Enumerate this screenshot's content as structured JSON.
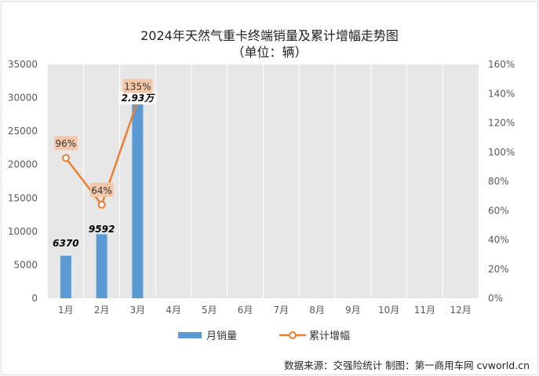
{
  "title_line1": "2024年天然气重卡终端销量及累计增幅走势图",
  "title_line2": "（单位：辆）",
  "footer": "数据来源：交强险统计  制图：第一商用车网 cvworld.cn",
  "colors": {
    "bar": "#5b9bd5",
    "line": "#ed7d31",
    "plot_bg": "#e7e7e7",
    "grid": "#ffffff",
    "label_bg": "#f4c7a8"
  },
  "chart_data": {
    "type": "bar",
    "categories": [
      "1月",
      "2月",
      "3月",
      "4月",
      "5月",
      "6月",
      "7月",
      "8月",
      "9月",
      "10月",
      "11月",
      "12月"
    ],
    "series": [
      {
        "name": "月销量",
        "type": "bar",
        "axis": "left",
        "values": [
          6370,
          9592,
          29300,
          null,
          null,
          null,
          null,
          null,
          null,
          null,
          null,
          null
        ],
        "labels": [
          "6370",
          "9592",
          "2.93万"
        ]
      },
      {
        "name": "累计增幅",
        "type": "line",
        "axis": "right",
        "values": [
          96,
          64,
          135,
          null,
          null,
          null,
          null,
          null,
          null,
          null,
          null,
          null
        ],
        "labels": [
          "96%",
          "64%",
          "135%"
        ]
      }
    ],
    "y_left": {
      "min": 0,
      "max": 35000,
      "ticks": [
        "0",
        "5000",
        "10000",
        "15000",
        "20000",
        "25000",
        "30000",
        "35000"
      ]
    },
    "y_right": {
      "min": 0,
      "max": 160,
      "ticks": [
        "0%",
        "20%",
        "40%",
        "60%",
        "80%",
        "100%",
        "120%",
        "140%",
        "160%"
      ]
    },
    "grid": "vertical",
    "legend": "bottom"
  }
}
